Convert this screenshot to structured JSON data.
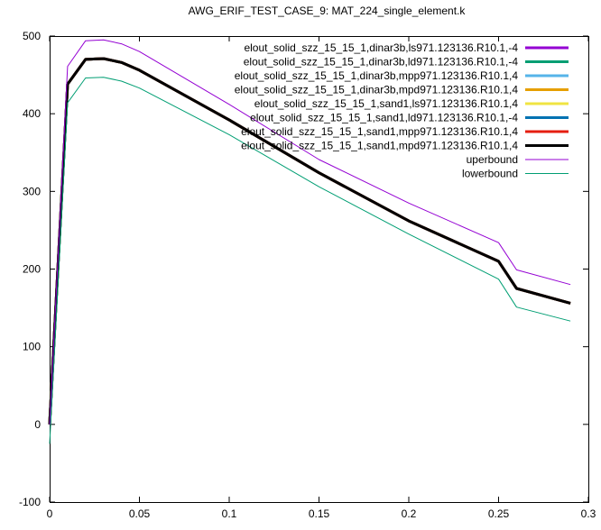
{
  "chart_data": {
    "type": "line",
    "title": "AWG_ERIF_TEST_CASE_9: MAT_224_single_element.k",
    "xlabel": "",
    "ylabel": "",
    "xlim": [
      0,
      0.3
    ],
    "ylim": [
      -100,
      500
    ],
    "xticks": [
      "0",
      "0.05",
      "0.1",
      "0.15",
      "0.2",
      "0.25",
      "0.3"
    ],
    "xtick_values": [
      0,
      0.05,
      0.1,
      0.15,
      0.2,
      0.25,
      0.3
    ],
    "yticks": [
      "-100",
      "0",
      "100",
      "200",
      "300",
      "400",
      "500"
    ],
    "ytick_values": [
      -100,
      0,
      100,
      200,
      300,
      400,
      500
    ],
    "grid": false,
    "legend_position": "top-right",
    "series": [
      {
        "name": "elout_solid_szz_15_15_1,dinar3b,ls971.123136.R10.1,-4",
        "color": "#9400d3",
        "width": 3,
        "x": [
          0,
          0.01,
          0.02,
          0.03,
          0.04,
          0.05,
          0.1,
          0.15,
          0.2,
          0.25,
          0.26,
          0.29
        ],
        "y": [
          0,
          438,
          470,
          471,
          466,
          456,
          392,
          324,
          262,
          210,
          175,
          156
        ]
      },
      {
        "name": "elout_solid_szz_15_15_1,dinar3b,ld971.123136.R10.1,-4",
        "color": "#009e73",
        "width": 3,
        "x": [
          0,
          0.01,
          0.02,
          0.03,
          0.04,
          0.05,
          0.1,
          0.15,
          0.2,
          0.25,
          0.26,
          0.29
        ],
        "y": [
          0,
          438,
          470,
          471,
          466,
          456,
          392,
          324,
          262,
          210,
          175,
          156
        ]
      },
      {
        "name": "elout_solid_szz_15_15_1,dinar3b,mpp971.123136.R10.1,4",
        "color": "#56b4e9",
        "width": 3,
        "x": [
          0,
          0.01,
          0.02,
          0.03,
          0.04,
          0.05,
          0.1,
          0.15,
          0.2,
          0.25,
          0.26,
          0.29
        ],
        "y": [
          0,
          438,
          470,
          471,
          466,
          456,
          392,
          324,
          262,
          210,
          175,
          156
        ]
      },
      {
        "name": "elout_solid_szz_15_15_1,dinar3b,mpd971.123136.R10.1,4",
        "color": "#e69f00",
        "width": 3,
        "x": [
          0,
          0.01,
          0.02,
          0.03,
          0.04,
          0.05,
          0.1,
          0.15,
          0.2,
          0.25,
          0.26,
          0.29
        ],
        "y": [
          0,
          438,
          470,
          471,
          466,
          456,
          392,
          324,
          262,
          210,
          175,
          156
        ]
      },
      {
        "name": "elout_solid_szz_15_15_1,sand1,ls971.123136.R10.1,4",
        "color": "#f0e442",
        "width": 3,
        "x": [
          0,
          0.01,
          0.02,
          0.03,
          0.04,
          0.05,
          0.1,
          0.15,
          0.2,
          0.25,
          0.26,
          0.29
        ],
        "y": [
          0,
          438,
          470,
          471,
          466,
          456,
          392,
          324,
          262,
          210,
          175,
          156
        ]
      },
      {
        "name": "elout_solid_szz_15_15_1,sand1,ld971.123136.R10.1,-4",
        "color": "#0072b2",
        "width": 3,
        "x": [
          0,
          0.01,
          0.02,
          0.03,
          0.04,
          0.05,
          0.1,
          0.15,
          0.2,
          0.25,
          0.26,
          0.29
        ],
        "y": [
          0,
          438,
          470,
          471,
          466,
          456,
          392,
          324,
          262,
          210,
          175,
          156
        ]
      },
      {
        "name": "elout_solid_szz_15_15_1,sand1,mpp971.123136.R10.1,4",
        "color": "#e51e10",
        "width": 3,
        "x": [
          0,
          0.01,
          0.02,
          0.03,
          0.04,
          0.05,
          0.1,
          0.15,
          0.2,
          0.25,
          0.26,
          0.29
        ],
        "y": [
          0,
          438,
          470,
          471,
          466,
          456,
          392,
          324,
          262,
          210,
          175,
          156
        ]
      },
      {
        "name": "elout_solid_szz_15_15_1,sand1,mpd971.123136.R10.1,4",
        "color": "#000000",
        "width": 3,
        "x": [
          0,
          0.01,
          0.02,
          0.03,
          0.04,
          0.05,
          0.1,
          0.15,
          0.2,
          0.25,
          0.26,
          0.29
        ],
        "y": [
          0,
          438,
          470,
          471,
          466,
          456,
          392,
          324,
          262,
          210,
          175,
          156
        ]
      },
      {
        "name": "uperbound",
        "color": "#9400d3",
        "width": 1,
        "x": [
          0,
          0.01,
          0.02,
          0.03,
          0.04,
          0.05,
          0.1,
          0.15,
          0.2,
          0.25,
          0.26,
          0.29
        ],
        "y": [
          0,
          461,
          494,
          495,
          490,
          480,
          412,
          341,
          285,
          234,
          199,
          180
        ]
      },
      {
        "name": "lowerbound",
        "color": "#009e73",
        "width": 1,
        "x": [
          0,
          0.01,
          0.02,
          0.03,
          0.04,
          0.05,
          0.1,
          0.15,
          0.2,
          0.25,
          0.26,
          0.29
        ],
        "y": [
          -25,
          414,
          446,
          447,
          442,
          433,
          373,
          306,
          245,
          187,
          151,
          133
        ]
      }
    ]
  }
}
